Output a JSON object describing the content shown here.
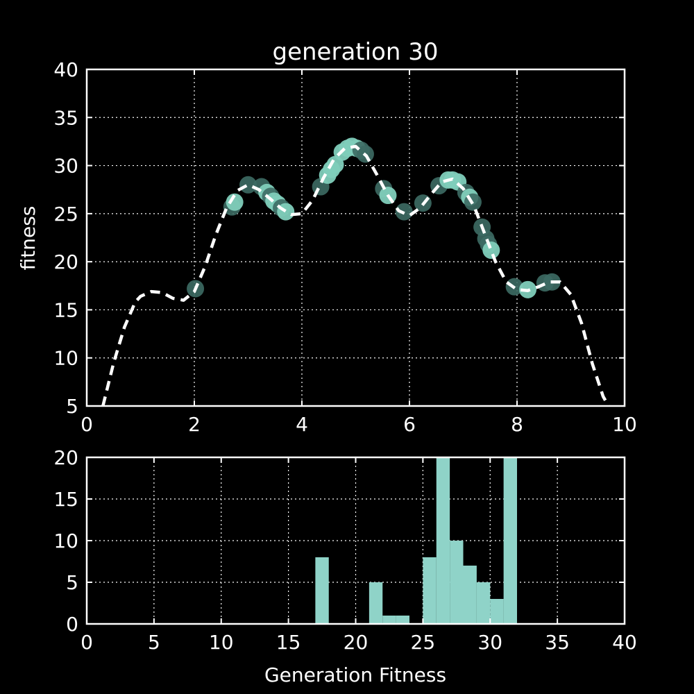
{
  "chart_data": [
    {
      "type": "scatter",
      "title": "generation 30",
      "xlabel": "",
      "ylabel": "fitness",
      "xlim": [
        0,
        10
      ],
      "ylim": [
        5,
        40
      ],
      "xticks": [
        "0",
        "2",
        "4",
        "6",
        "8",
        "10"
      ],
      "yticks": [
        "5",
        "10",
        "15",
        "20",
        "25",
        "30",
        "35",
        "40"
      ],
      "grid": true,
      "colors": {
        "background": "#000000",
        "axes": "#ffffff",
        "curve": "#ffffff",
        "point_light": "#7fcdbb",
        "point_dark": "#3d6b64"
      },
      "curve": {
        "x": [
          0.3,
          0.5,
          0.7,
          0.9,
          1.0,
          1.2,
          1.4,
          1.6,
          1.8,
          2.0,
          2.2,
          2.4,
          2.6,
          2.8,
          3.0,
          3.2,
          3.4,
          3.6,
          3.8,
          4.0,
          4.2,
          4.4,
          4.6,
          4.8,
          5.0,
          5.2,
          5.4,
          5.6,
          5.8,
          6.0,
          6.2,
          6.4,
          6.6,
          6.8,
          7.0,
          7.2,
          7.4,
          7.6,
          7.8,
          8.0,
          8.2,
          8.4,
          8.6,
          8.8,
          9.0,
          9.2,
          9.4,
          9.6,
          9.7
        ],
        "y": [
          5.0,
          9.5,
          13.2,
          15.8,
          16.4,
          16.9,
          16.8,
          16.2,
          16.0,
          16.9,
          19.5,
          22.8,
          25.6,
          27.4,
          28.0,
          27.5,
          26.6,
          25.6,
          24.9,
          25.0,
          26.4,
          28.7,
          30.7,
          31.8,
          32.0,
          31.0,
          29.0,
          26.9,
          25.3,
          24.8,
          25.6,
          27.0,
          28.3,
          28.6,
          27.6,
          25.8,
          22.9,
          20.0,
          17.9,
          17.1,
          17.0,
          17.4,
          17.9,
          17.9,
          16.6,
          13.6,
          9.4,
          6.0,
          5.0
        ]
      },
      "points": [
        {
          "x": 2.02,
          "y": 17.2,
          "shade": "dark"
        },
        {
          "x": 2.7,
          "y": 25.7,
          "shade": "dark"
        },
        {
          "x": 2.75,
          "y": 26.2,
          "shade": "light"
        },
        {
          "x": 3.0,
          "y": 28.0,
          "shade": "dark"
        },
        {
          "x": 3.25,
          "y": 27.8,
          "shade": "dark"
        },
        {
          "x": 3.35,
          "y": 27.2,
          "shade": "light"
        },
        {
          "x": 3.42,
          "y": 26.8,
          "shade": "dark"
        },
        {
          "x": 3.48,
          "y": 26.3,
          "shade": "light"
        },
        {
          "x": 3.55,
          "y": 26.0,
          "shade": "light"
        },
        {
          "x": 3.62,
          "y": 25.6,
          "shade": "dark"
        },
        {
          "x": 3.7,
          "y": 25.2,
          "shade": "light"
        },
        {
          "x": 4.35,
          "y": 27.8,
          "shade": "dark"
        },
        {
          "x": 4.48,
          "y": 29.0,
          "shade": "light"
        },
        {
          "x": 4.55,
          "y": 29.6,
          "shade": "light"
        },
        {
          "x": 4.62,
          "y": 30.1,
          "shade": "light"
        },
        {
          "x": 4.75,
          "y": 31.4,
          "shade": "light"
        },
        {
          "x": 4.85,
          "y": 31.8,
          "shade": "light"
        },
        {
          "x": 4.93,
          "y": 32.0,
          "shade": "light"
        },
        {
          "x": 5.02,
          "y": 31.8,
          "shade": "light"
        },
        {
          "x": 5.1,
          "y": 31.6,
          "shade": "dark"
        },
        {
          "x": 5.18,
          "y": 31.2,
          "shade": "dark"
        },
        {
          "x": 5.52,
          "y": 27.6,
          "shade": "dark"
        },
        {
          "x": 5.6,
          "y": 26.9,
          "shade": "light"
        },
        {
          "x": 5.9,
          "y": 25.2,
          "shade": "dark"
        },
        {
          "x": 6.25,
          "y": 26.1,
          "shade": "dark"
        },
        {
          "x": 6.55,
          "y": 27.9,
          "shade": "dark"
        },
        {
          "x": 6.72,
          "y": 28.5,
          "shade": "light"
        },
        {
          "x": 6.8,
          "y": 28.5,
          "shade": "light"
        },
        {
          "x": 6.9,
          "y": 28.3,
          "shade": "light"
        },
        {
          "x": 7.05,
          "y": 27.2,
          "shade": "dark"
        },
        {
          "x": 7.12,
          "y": 26.7,
          "shade": "light"
        },
        {
          "x": 7.18,
          "y": 26.2,
          "shade": "dark"
        },
        {
          "x": 7.35,
          "y": 23.6,
          "shade": "dark"
        },
        {
          "x": 7.42,
          "y": 22.4,
          "shade": "dark"
        },
        {
          "x": 7.47,
          "y": 21.8,
          "shade": "dark"
        },
        {
          "x": 7.52,
          "y": 21.2,
          "shade": "light"
        },
        {
          "x": 7.95,
          "y": 17.4,
          "shade": "dark"
        },
        {
          "x": 8.2,
          "y": 17.1,
          "shade": "light"
        },
        {
          "x": 8.52,
          "y": 17.8,
          "shade": "dark"
        },
        {
          "x": 8.65,
          "y": 17.9,
          "shade": "dark"
        }
      ]
    },
    {
      "type": "bar",
      "title": "",
      "xlabel": "Generation Fitness",
      "ylabel": "",
      "xlim": [
        0,
        40
      ],
      "ylim": [
        0,
        20
      ],
      "xticks": [
        "0",
        "5",
        "10",
        "15",
        "20",
        "25",
        "30",
        "35",
        "40"
      ],
      "yticks": [
        "0",
        "5",
        "10",
        "15",
        "20"
      ],
      "grid": true,
      "colors": {
        "bar": "#8fd3c8"
      },
      "bins": [
        {
          "x0": 17,
          "x1": 18,
          "count": 8
        },
        {
          "x0": 21,
          "x1": 22,
          "count": 5
        },
        {
          "x0": 22,
          "x1": 23,
          "count": 1
        },
        {
          "x0": 23,
          "x1": 24,
          "count": 1
        },
        {
          "x0": 25,
          "x1": 26,
          "count": 8
        },
        {
          "x0": 26,
          "x1": 27,
          "count": 20
        },
        {
          "x0": 27,
          "x1": 28,
          "count": 10
        },
        {
          "x0": 28,
          "x1": 29,
          "count": 7
        },
        {
          "x0": 29,
          "x1": 30,
          "count": 5
        },
        {
          "x0": 30,
          "x1": 31,
          "count": 3
        },
        {
          "x0": 31,
          "x1": 32,
          "count": 20
        }
      ]
    }
  ]
}
